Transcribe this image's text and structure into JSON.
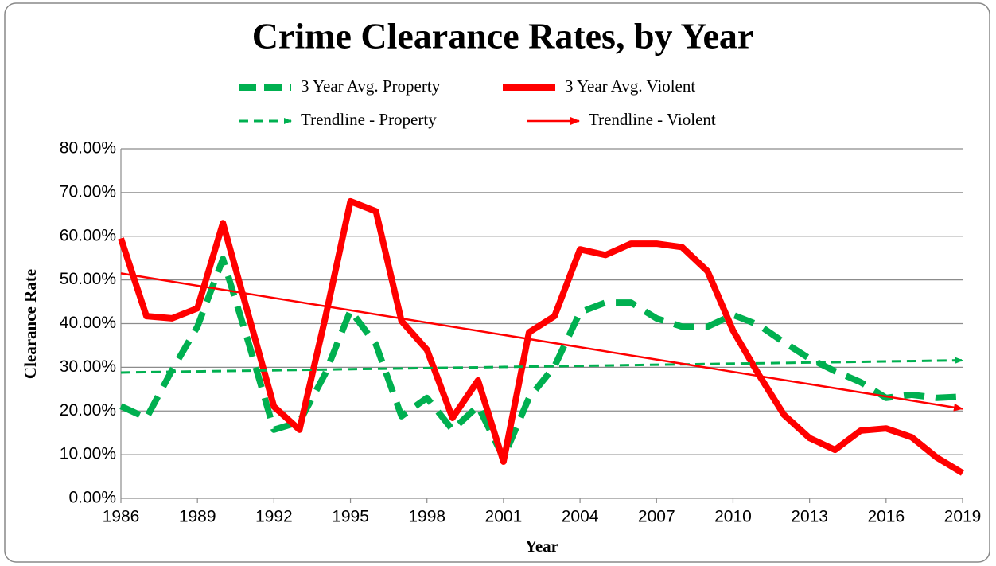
{
  "chart_data": {
    "type": "line",
    "title": "Crime Clearance Rates, by Year",
    "x_label": "Year",
    "y_label": "Clearance Rate",
    "x": [
      1986,
      1987,
      1988,
      1989,
      1990,
      1991,
      1992,
      1993,
      1994,
      1995,
      1996,
      1997,
      1998,
      1999,
      2000,
      2001,
      2002,
      2003,
      2004,
      2005,
      2006,
      2007,
      2008,
      2009,
      2010,
      2011,
      2012,
      2013,
      2014,
      2015,
      2016,
      2017,
      2018,
      2019
    ],
    "series": [
      {
        "name": "3 Year Avg. Property",
        "color": "#00b050",
        "style": "dashed",
        "values": [
          21.1,
          18.4,
          29.3,
          39.3,
          54.8,
          35.7,
          15.7,
          17.5,
          28.4,
          43,
          35.2,
          18.8,
          23,
          15.7,
          21.1,
          9.3,
          23,
          30.2,
          42.6,
          44.8,
          44.8,
          41.2,
          39.3,
          39.3,
          42,
          39.7,
          35.7,
          32,
          29.1,
          26.6,
          23,
          23.7,
          23,
          23.3
        ]
      },
      {
        "name": "3 Year Avg. Violent",
        "color": "#ff0000",
        "style": "solid",
        "values": [
          59.5,
          41.7,
          41.2,
          43.5,
          63,
          42,
          21,
          15.7,
          41,
          68,
          65.7,
          40.6,
          34,
          18.4,
          27,
          8.4,
          38,
          41.7,
          57,
          55.7,
          58.3,
          58.3,
          57.5,
          52,
          38.4,
          28.4,
          19.1,
          13.8,
          11.1,
          15.5,
          16,
          14,
          9.3,
          5.8
        ]
      },
      {
        "name": "Trendline - Property",
        "color": "#00b050",
        "style": "trend-dashed",
        "x": [
          1986,
          2019
        ],
        "values": [
          28.8,
          31.6
        ]
      },
      {
        "name": "Trendline - Violent",
        "color": "#ff0000",
        "style": "trend",
        "x": [
          1986,
          2019
        ],
        "values": [
          51.5,
          20.5
        ]
      }
    ],
    "xlim": [
      1986,
      2019
    ],
    "xticks": [
      1986,
      1989,
      1992,
      1995,
      1998,
      2001,
      2004,
      2007,
      2010,
      2013,
      2016,
      2019
    ],
    "ylim": [
      0,
      80
    ],
    "yticks": [
      {
        "value": 0,
        "label": "0.00%"
      },
      {
        "value": 10,
        "label": "10.00%"
      },
      {
        "value": 20,
        "label": "20.00%"
      },
      {
        "value": 30,
        "label": "30.00%"
      },
      {
        "value": 40,
        "label": "40.00%"
      },
      {
        "value": 50,
        "label": "50.00%"
      },
      {
        "value": 60,
        "label": "60.00%"
      },
      {
        "value": 70,
        "label": "70.00%"
      },
      {
        "value": 80,
        "label": "80.00%"
      }
    ],
    "grid": true
  }
}
